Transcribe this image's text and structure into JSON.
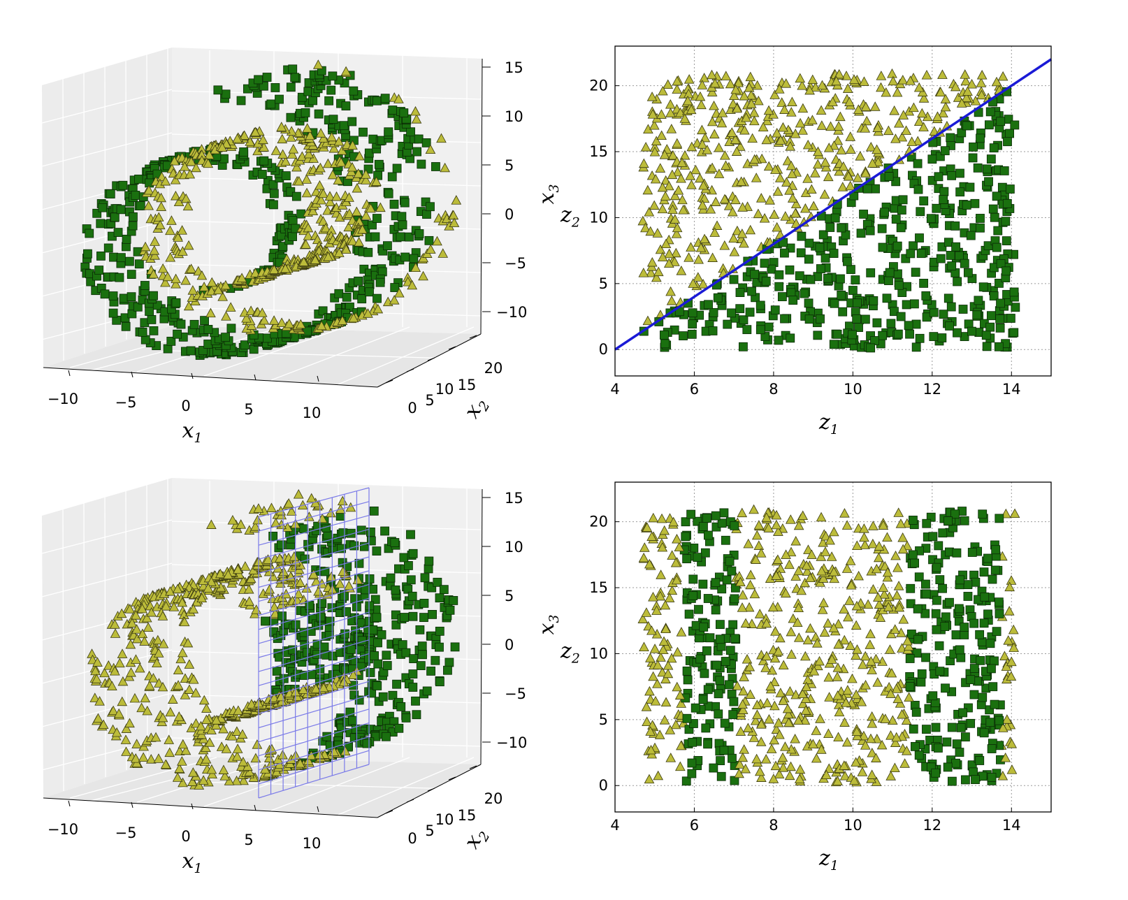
{
  "colors": {
    "squares": "#1a700f",
    "squares_edge": "#0a2a05",
    "triangles": "#bcbc3a",
    "triangles_edge": "#3a3a10",
    "boundary_line": "#1a1ad6",
    "plane_grid": "#7a7ae8",
    "pane": "#ebebeb",
    "gridline": "#c8c8c8"
  },
  "chart_data": [
    {
      "type": "scatter",
      "panel": "top-left",
      "projection": "3d",
      "shape": "swiss-roll",
      "series": [
        {
          "marker": "square",
          "color": "#1a700f",
          "name": ""
        },
        {
          "marker": "triangle",
          "color": "#bcbc3a",
          "name": ""
        }
      ],
      "xlabel": "x",
      "xlabel_sub": "1",
      "ylabel": "x",
      "ylabel_sub": "2",
      "zlabel": "x",
      "zlabel_sub": "3",
      "x_ticks": [
        "−10",
        "−5",
        "0",
        "5",
        "10"
      ],
      "y_ticks": [
        "0",
        "5",
        "10",
        "15",
        "20"
      ],
      "z_ticks": [
        "15",
        "10",
        "5",
        "0",
        "−5",
        "−10"
      ],
      "xlim": [
        -11,
        14
      ],
      "ylim": [
        0,
        21
      ],
      "zlim": [
        -12,
        15
      ],
      "decision_plane": false
    },
    {
      "type": "scatter",
      "panel": "top-right",
      "xlabel": "z",
      "xlabel_sub": "1",
      "ylabel": "z",
      "ylabel_sub": "2",
      "x_ticks": [
        "4",
        "6",
        "8",
        "10",
        "12",
        "14"
      ],
      "y_ticks": [
        "0",
        "5",
        "10",
        "15",
        "20"
      ],
      "xlim": [
        4,
        15
      ],
      "ylim": [
        -2,
        23
      ],
      "grid": true,
      "boundary": {
        "x": [
          4,
          15
        ],
        "y": [
          0,
          22
        ]
      },
      "series": [
        {
          "marker": "triangle",
          "color": "#bcbc3a",
          "rule": "z2 > 2*(z1-4)"
        },
        {
          "marker": "square",
          "color": "#1a700f",
          "rule": "z2 <= 2*(z1-4)"
        }
      ]
    },
    {
      "type": "scatter",
      "panel": "bottom-left",
      "projection": "3d",
      "shape": "swiss-roll",
      "xlabel": "x",
      "xlabel_sub": "1",
      "ylabel": "x",
      "ylabel_sub": "2",
      "zlabel": "x",
      "zlabel_sub": "3",
      "x_ticks": [
        "−10",
        "−5",
        "0",
        "5",
        "10"
      ],
      "y_ticks": [
        "0",
        "5",
        "10",
        "15",
        "20"
      ],
      "z_ticks": [
        "15",
        "10",
        "5",
        "0",
        "−5",
        "−10"
      ],
      "xlim": [
        -11,
        14
      ],
      "ylim": [
        0,
        21
      ],
      "zlim": [
        -12,
        15
      ],
      "decision_plane": true,
      "plane_x": 5,
      "series": [
        {
          "marker": "triangle",
          "color": "#bcbc3a",
          "rule": "x1 < 5"
        },
        {
          "marker": "square",
          "color": "#1a700f",
          "rule": "x1 >= 5"
        }
      ]
    },
    {
      "type": "scatter",
      "panel": "bottom-right",
      "xlabel": "z",
      "xlabel_sub": "1",
      "ylabel": "z",
      "ylabel_sub": "2",
      "x_ticks": [
        "4",
        "6",
        "8",
        "10",
        "12",
        "14"
      ],
      "y_ticks": [
        "0",
        "5",
        "10",
        "15",
        "20"
      ],
      "xlim": [
        4,
        15
      ],
      "ylim": [
        -2,
        23
      ],
      "grid": true,
      "series": [
        {
          "marker": "triangle",
          "color": "#bcbc3a",
          "rule": "x1 < 5 on unrolled roll"
        },
        {
          "marker": "square",
          "color": "#1a700f",
          "rule": "x1 >= 5 on unrolled roll"
        }
      ]
    }
  ]
}
